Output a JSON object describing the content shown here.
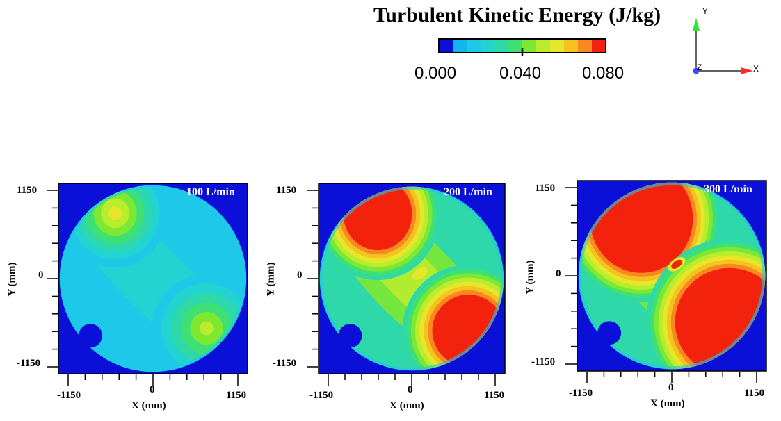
{
  "chart_data": {
    "type": "heatmap",
    "title": "Turbulent Kinetic Energy (J/kg)",
    "colorbar": {
      "ticks": [
        "0.000",
        "0.040",
        "0.080"
      ],
      "range": [
        0,
        0.08
      ],
      "colors": [
        "#0a10d8",
        "#10b6ec",
        "#1ec8e8",
        "#22d4cf",
        "#2fd8a8",
        "#3ee076",
        "#7ce832",
        "#b9ec2c",
        "#e6e62a",
        "#f5c21e",
        "#f88820",
        "#f2220c"
      ]
    },
    "axes_triad": {
      "x": "X",
      "y": "Y",
      "z": "Z",
      "x_color": "#ff2a2a",
      "y_color": "#2ee82e",
      "z_color": "#3b48ff"
    },
    "panels": [
      {
        "label": "100 L/min",
        "xlabel": "X (mm)",
        "ylabel": "Y (mm)",
        "xticks": [
          "-1150",
          "0",
          "1150"
        ],
        "yticks": [
          "1150",
          "0",
          "-1150"
        ],
        "xlim": [
          -1150,
          1150
        ],
        "ylim": [
          -1150,
          1150
        ],
        "hotspots": [
          {
            "name": "upper-left",
            "center": [
              -460,
              790
            ],
            "peak": 0.058
          },
          {
            "name": "lower-right",
            "center": [
              650,
              -600
            ],
            "peak": 0.052
          }
        ]
      },
      {
        "label": "200 L/min",
        "xlabel": "X (mm)",
        "ylabel": "Y (mm)",
        "xticks": [
          "-1150",
          "0",
          "1150"
        ],
        "yticks": [
          "1150",
          "0",
          "-1150"
        ],
        "xlim": [
          -1150,
          1150
        ],
        "ylim": [
          -1150,
          1150
        ],
        "hotspots": [
          {
            "name": "upper-left",
            "center": [
              -420,
              780
            ],
            "peak": 0.08
          },
          {
            "name": "lower-right",
            "center": [
              700,
              -630
            ],
            "peak": 0.08
          }
        ]
      },
      {
        "label": "300 L/min",
        "xlabel": "X (mm)",
        "ylabel": "Y (mm)",
        "xticks": [
          "-1150",
          "0",
          "1150"
        ],
        "yticks": [
          "1150",
          "0",
          "-1150"
        ],
        "xlim": [
          -1150,
          1150
        ],
        "ylim": [
          -1150,
          1150
        ],
        "hotspots": [
          {
            "name": "upper-left",
            "center": [
              -370,
              690
            ],
            "peak": 0.08
          },
          {
            "name": "lower-right",
            "center": [
              700,
              -560
            ],
            "peak": 0.08
          }
        ]
      }
    ]
  }
}
